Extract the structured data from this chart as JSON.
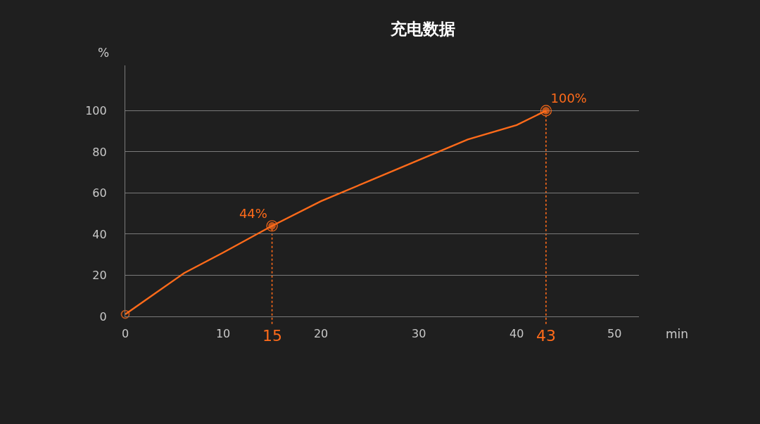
{
  "chart_data": {
    "type": "line",
    "title": "充电数据",
    "xlabel": "min",
    "ylabel": "%",
    "xlim": [
      0,
      52.5
    ],
    "xticks": [
      0,
      10,
      20,
      30,
      40,
      50
    ],
    "ylim": [
      0,
      122
    ],
    "yticks": [
      0,
      20,
      40,
      60,
      80,
      100
    ],
    "grid": "y",
    "series": [
      {
        "color": "#ff6b1a",
        "marker": "none",
        "line_style": "solid",
        "x": [
          0,
          3,
          6,
          10,
          15,
          20,
          25,
          30,
          35,
          40,
          43
        ],
        "values": [
          1,
          11,
          21,
          31,
          44,
          56,
          66,
          76,
          86,
          93,
          100
        ]
      },
      {
        "type": "scatter",
        "color": "#ff6b1a",
        "marker": "circle",
        "x": [
          0,
          15,
          43
        ],
        "values": [
          1,
          44,
          100
        ],
        "value_labels": [
          null,
          "44%",
          "100%"
        ]
      }
    ],
    "ref_lines": [
      {
        "axis": "x",
        "value": 15,
        "label": "15",
        "color": "#ff6b1a",
        "line_style": "dotted"
      },
      {
        "axis": "x",
        "value": 43,
        "label": "43",
        "color": "#ff6b1a",
        "line_style": "dotted"
      }
    ]
  }
}
